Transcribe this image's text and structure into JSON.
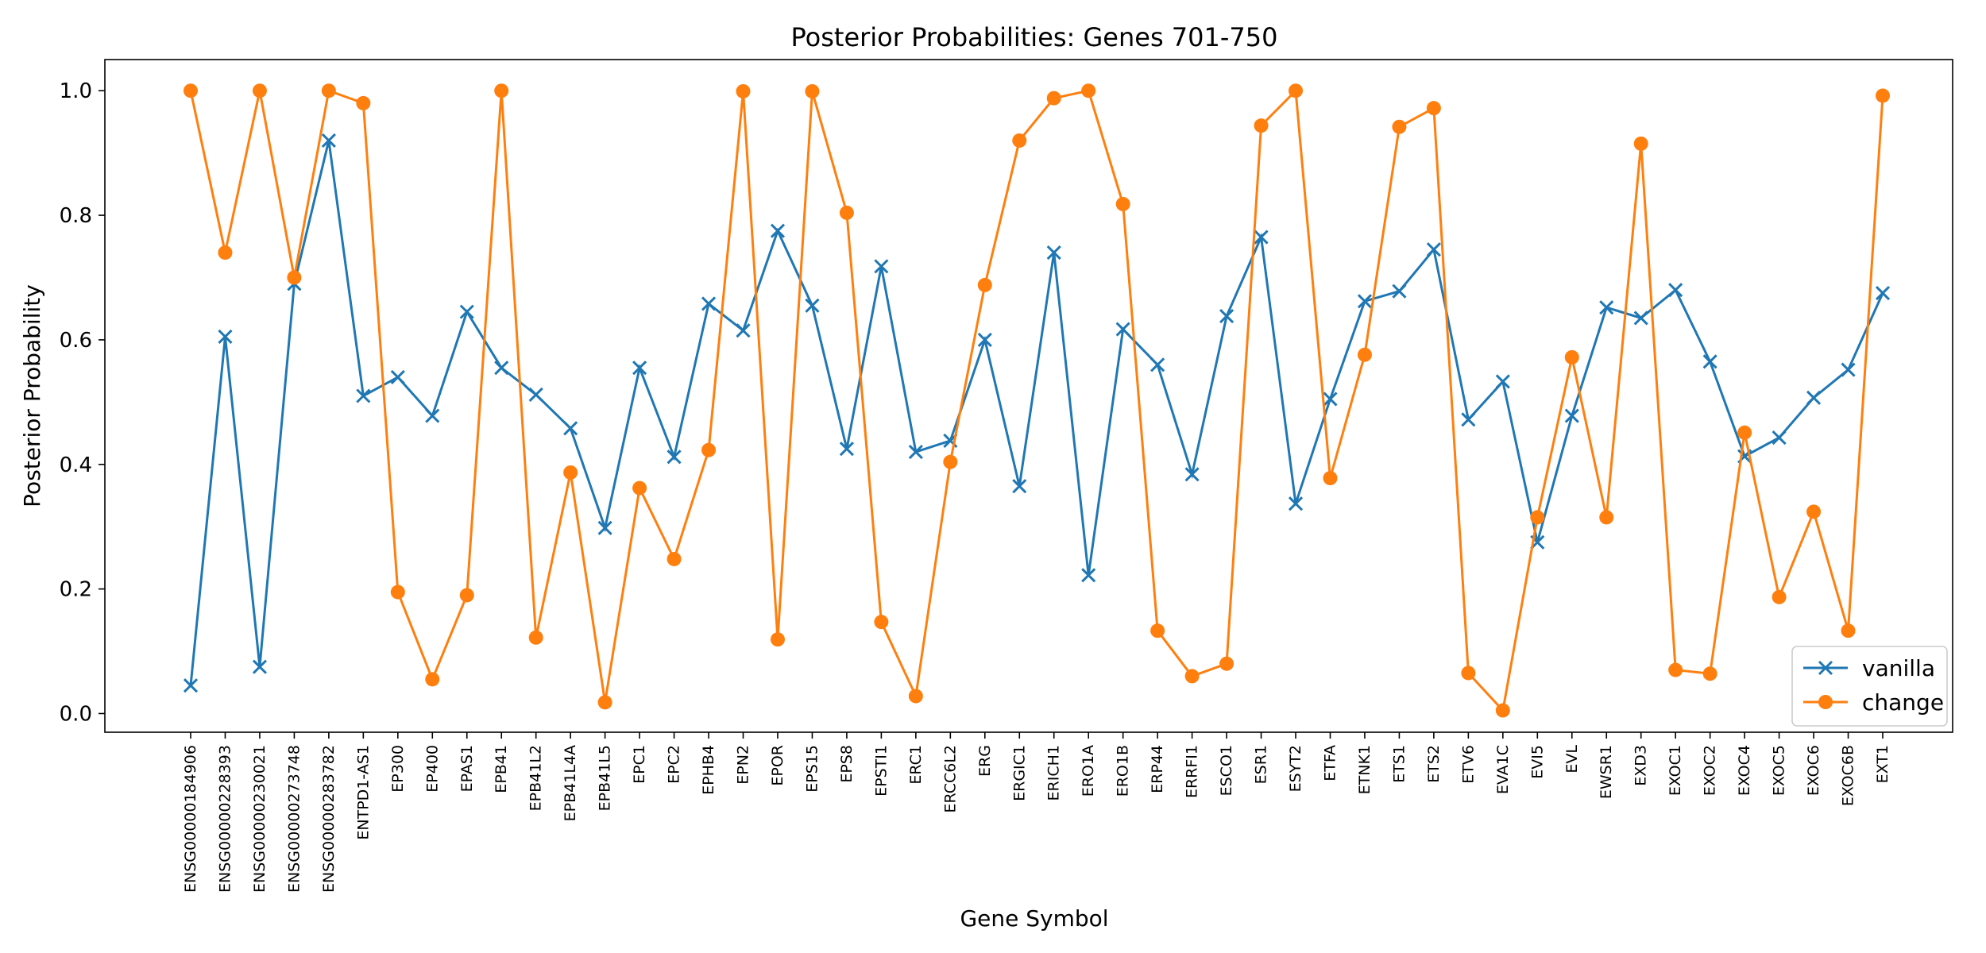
{
  "chart_data": {
    "type": "line",
    "title": "Posterior Probabilities: Genes 701-750",
    "xlabel": "Gene Symbol",
    "ylabel": "Posterior Probability",
    "ylim": [
      -0.03,
      1.05
    ],
    "yticks": [
      0.0,
      0.2,
      0.4,
      0.6,
      0.8,
      1.0
    ],
    "grid": false,
    "legend_position": "bottom-right",
    "categories": [
      "ENSG00000184906",
      "ENSG00000228393",
      "ENSG00000230021",
      "ENSG00000273748",
      "ENSG00000283782",
      "ENTPD1-AS1",
      "EP300",
      "EP400",
      "EPAS1",
      "EPB41",
      "EPB41L2",
      "EPB41L4A",
      "EPB41L5",
      "EPC1",
      "EPC2",
      "EPHB4",
      "EPN2",
      "EPOR",
      "EPS15",
      "EPS8",
      "EPSTI1",
      "ERC1",
      "ERCC6L2",
      "ERG",
      "ERGIC1",
      "ERICH1",
      "ERO1A",
      "ERO1B",
      "ERP44",
      "ERRFI1",
      "ESCO1",
      "ESR1",
      "ESYT2",
      "ETFA",
      "ETNK1",
      "ETS1",
      "ETS2",
      "ETV6",
      "EVA1C",
      "EVI5",
      "EVL",
      "EWSR1",
      "EXD3",
      "EXOC1",
      "EXOC2",
      "EXOC4",
      "EXOC5",
      "EXOC6",
      "EXOC6B",
      "EXT1"
    ],
    "series": [
      {
        "name": "vanilla",
        "color": "#1f77b4",
        "marker": "x",
        "values": [
          0.045,
          0.605,
          0.075,
          0.69,
          0.92,
          0.51,
          0.54,
          0.478,
          0.645,
          0.555,
          0.512,
          0.458,
          0.298,
          0.555,
          0.412,
          0.658,
          0.615,
          0.775,
          0.655,
          0.425,
          0.718,
          0.42,
          0.438,
          0.6,
          0.365,
          0.74,
          0.222,
          0.617,
          0.56,
          0.384,
          0.638,
          0.765,
          0.337,
          0.505,
          0.662,
          0.678,
          0.745,
          0.472,
          0.533,
          0.275,
          0.478,
          0.652,
          0.635,
          0.68,
          0.565,
          0.413,
          0.443,
          0.507,
          0.552,
          0.675
        ]
      },
      {
        "name": "change",
        "color": "#ff7f0e",
        "marker": "o",
        "values": [
          1.0,
          0.74,
          1.0,
          0.7,
          1.0,
          0.98,
          0.195,
          0.055,
          0.19,
          1.0,
          0.122,
          0.387,
          0.018,
          0.362,
          0.248,
          0.423,
          0.999,
          0.119,
          0.999,
          0.804,
          0.147,
          0.028,
          0.404,
          0.688,
          0.92,
          0.988,
          1.0,
          0.818,
          0.133,
          0.06,
          0.08,
          0.944,
          1.0,
          0.378,
          0.576,
          0.942,
          0.972,
          0.065,
          0.005,
          0.315,
          0.572,
          0.315,
          0.915,
          0.07,
          0.064,
          0.451,
          0.187,
          0.324,
          0.133,
          0.992
        ]
      }
    ]
  }
}
